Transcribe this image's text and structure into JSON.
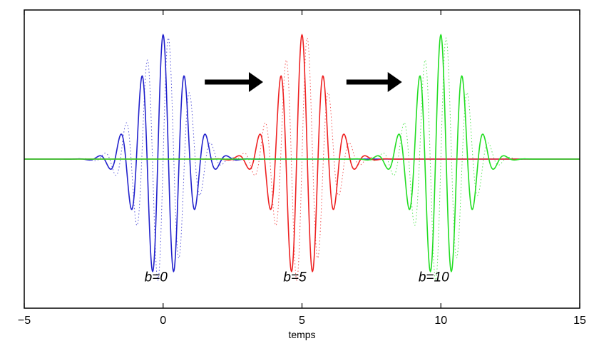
{
  "chart_data": {
    "type": "line",
    "xlabel": "temps",
    "ylabel": "",
    "xlim": [
      -5,
      15
    ],
    "ylim": [
      -1.2,
      1.2
    ],
    "x_ticks": [
      -5,
      0,
      5,
      10,
      15
    ],
    "x_tick_labels": [
      "−5",
      "0",
      "5",
      "10",
      "15"
    ],
    "grid": false,
    "wavelet": {
      "frequency": 1.3,
      "gaussian_sigma": 0.85
    },
    "series": [
      {
        "shift": 0,
        "color": "#2222cc",
        "style": "solid",
        "annotation": "b=0"
      },
      {
        "shift": 5,
        "color": "#ee2222",
        "style": "solid",
        "annotation": "b=5"
      },
      {
        "shift": 10,
        "color": "#22dd22",
        "style": "solid",
        "annotation": "b=10"
      }
    ],
    "imaginary_parts": [
      {
        "shift": 0,
        "color": "#2222cc",
        "style": "dotted"
      },
      {
        "shift": 5,
        "color": "#ee2222",
        "style": "dotted"
      },
      {
        "shift": 10,
        "color": "#22dd22",
        "style": "dotted"
      }
    ],
    "arrows": [
      {
        "from": 1.5,
        "to": 3.6,
        "y": 0.62
      },
      {
        "from": 6.6,
        "to": 8.6,
        "y": 0.62
      }
    ],
    "annotation_y": -0.95
  }
}
